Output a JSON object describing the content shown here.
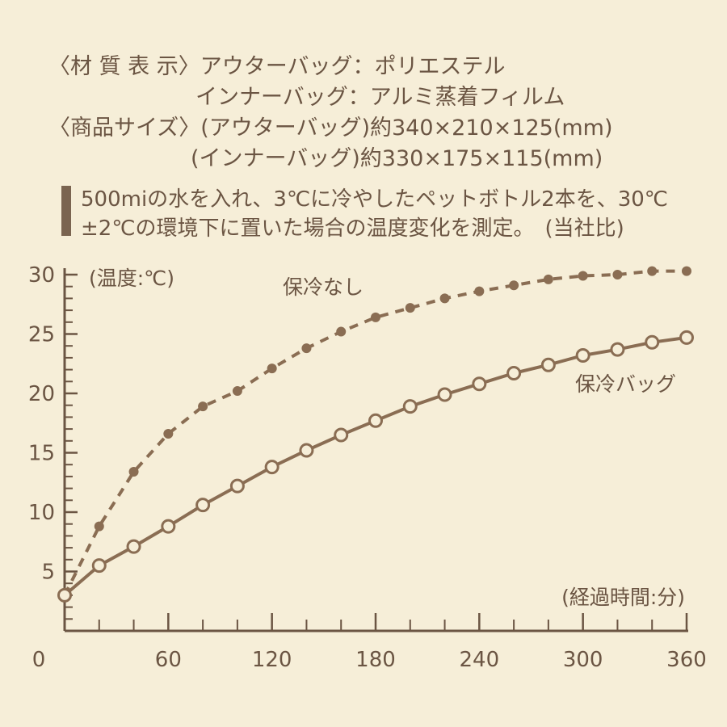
{
  "spec": {
    "material_label": "〈材 質 表 示〉",
    "outer_bag_material": "アウターバッグ：ポリエステル",
    "inner_bag_material": "インナーバッグ：アルミ蒸着フィルム",
    "size_label": "〈商品サイズ〉",
    "outer_bag_size": "(アウターバッグ)約340×210×125(mm)",
    "inner_bag_size": "(インナーバッグ)約330×175×115(mm)"
  },
  "note": {
    "line1": "500miの水を入れ、3℃に冷やしたペットボトル2本を、30℃",
    "line2": "±2℃の環境下に置いた場合の温度変化を測定。　(当社比)"
  },
  "colors": {
    "background": "#f6eed8",
    "ink": "#6b5543",
    "line": "#8a6d53"
  },
  "chart_data": {
    "type": "line",
    "ylabel": "(温度:℃)",
    "xlabel": "(経過時間:分)",
    "xlim": [
      0,
      360
    ],
    "ylim": [
      0,
      30
    ],
    "x_ticks": [
      0,
      60,
      120,
      180,
      240,
      300,
      360
    ],
    "y_ticks": [
      5,
      10,
      15,
      20,
      25,
      30
    ],
    "x": [
      0,
      20,
      40,
      60,
      80,
      100,
      120,
      140,
      160,
      180,
      200,
      220,
      240,
      260,
      280,
      300,
      320,
      340,
      360
    ],
    "series": [
      {
        "name": "保冷なし",
        "style": "dashed",
        "marker": "filled",
        "values": [
          3.0,
          8.8,
          13.4,
          16.6,
          18.9,
          20.2,
          22.1,
          23.8,
          25.2,
          26.4,
          27.2,
          28.0,
          28.6,
          29.1,
          29.6,
          29.9,
          30.0,
          30.3,
          30.3
        ]
      },
      {
        "name": "保冷バッグ",
        "style": "solid",
        "marker": "open",
        "values": [
          3.0,
          5.5,
          7.1,
          8.8,
          10.6,
          12.2,
          13.8,
          15.2,
          16.5,
          17.7,
          18.9,
          19.9,
          20.8,
          21.7,
          22.4,
          23.2,
          23.7,
          24.3,
          24.7
        ]
      }
    ]
  }
}
